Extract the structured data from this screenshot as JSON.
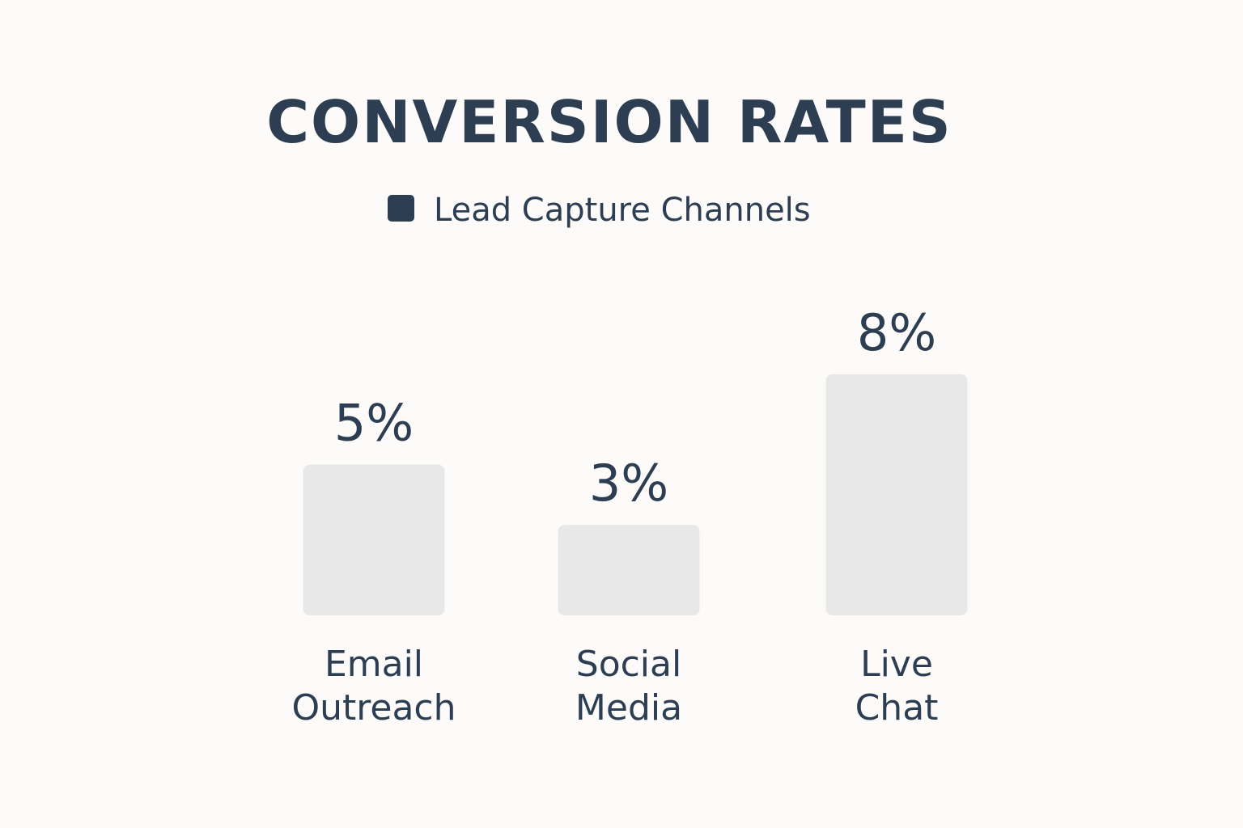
{
  "chart_data": {
    "type": "bar",
    "title": "CONVERSION RATES",
    "legend": {
      "label": "Lead Capture Channels",
      "placement": "top-center"
    },
    "categories": [
      [
        "Email",
        "Outreach"
      ],
      [
        "Social",
        "Media"
      ],
      [
        "Live",
        "Chat"
      ]
    ],
    "series": [
      {
        "name": "Lead Capture Channels",
        "values": [
          5,
          3,
          8
        ]
      }
    ],
    "value_labels": [
      "5%",
      "3%",
      "8%"
    ],
    "unit": "%",
    "xlabel": "",
    "ylabel": "",
    "ylim": [
      0,
      9.5
    ],
    "grid": false
  },
  "colors": {
    "background": "#fcfbf9",
    "text": "#2e3e52",
    "bar_fill": "#e8e8e8",
    "legend_swatch": "#2e3e52"
  }
}
